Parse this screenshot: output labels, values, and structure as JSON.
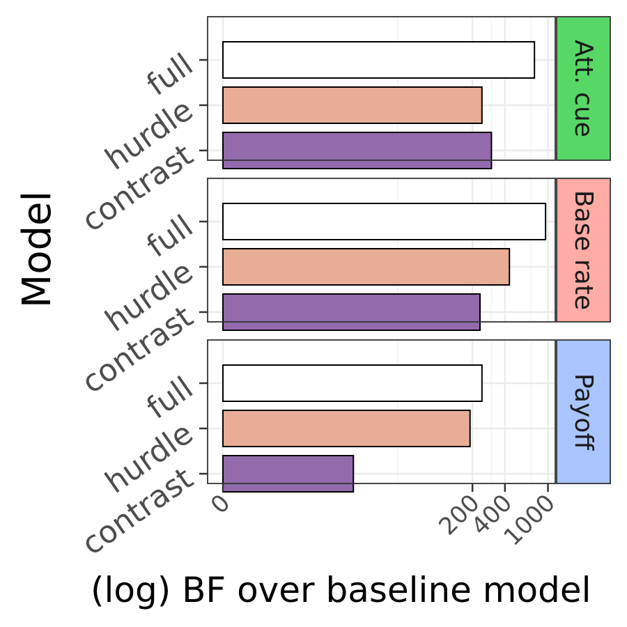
{
  "chart_data": {
    "type": "bar",
    "orientation": "horizontal",
    "x_scale": "log1p",
    "xlabel": "(log) BF over baseline model",
    "ylabel": "Model",
    "x_ticks": [
      0,
      200,
      400,
      1000
    ],
    "x_tick_labels": [
      "0",
      "200",
      "400",
      "1000"
    ],
    "categories": [
      "full",
      "hurdle",
      "contrast"
    ],
    "category_colors": {
      "full": "#ffffff",
      "hurdle": "#e8ad96",
      "contrast": "#936bad"
    },
    "grid": true,
    "facets": [
      {
        "label": "Att. cue",
        "strip_color": "#57d766",
        "values": {
          "full": 750,
          "hurdle": 245,
          "contrast": 300
        }
      },
      {
        "label": "Base rate",
        "strip_color": "#ffaba6",
        "values": {
          "full": 950,
          "hurdle": 440,
          "contrast": 235
        }
      },
      {
        "label": "Payoff",
        "strip_color": "#aac4ff",
        "values": {
          "full": 245,
          "hurdle": 190,
          "contrast": 15
        }
      }
    ]
  }
}
